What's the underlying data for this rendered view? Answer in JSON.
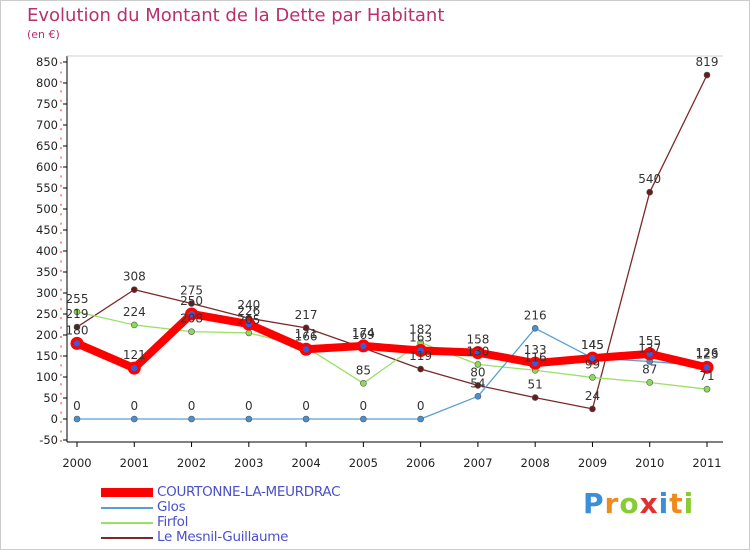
{
  "chart_data": {
    "type": "line",
    "title": "Evolution du Montant de la Dette par Habitant",
    "subtitle": "(en €)",
    "x": [
      "2000",
      "2001",
      "2002",
      "2003",
      "2004",
      "2005",
      "2006",
      "2007",
      "2008",
      "2009",
      "2010",
      "2011"
    ],
    "ylim": [
      -50,
      850
    ],
    "yticks": [
      -50,
      0,
      50,
      100,
      150,
      200,
      250,
      300,
      350,
      400,
      450,
      500,
      550,
      600,
      650,
      700,
      750,
      800,
      850
    ],
    "grid": false,
    "series": [
      {
        "name": "COURTONNE-LA-MEURDRAC",
        "color": "#ff0000",
        "marker": "#3b5bd8",
        "values": [
          180,
          121,
          250,
          226,
          166,
          174,
          163,
          158,
          133,
          145,
          155,
          123
        ],
        "labels": [
          "180",
          "121",
          "250",
          "226",
          "166",
          "174",
          "163",
          "158",
          "133",
          "145",
          "155",
          "123"
        ]
      },
      {
        "name": "Glos",
        "color": "#5a9fd4",
        "marker": "#4a90d0",
        "values": [
          0,
          0,
          0,
          0,
          0,
          0,
          0,
          54,
          216,
          145,
          137,
          126
        ],
        "labels": [
          "0",
          "0",
          "0",
          "0",
          "0",
          "0",
          "0",
          "54",
          "216",
          "145",
          "137",
          "126"
        ]
      },
      {
        "name": "Firfol",
        "color": "#99e066",
        "marker": "#88dd55",
        "values": [
          255,
          224,
          208,
          205,
          171,
          85,
          182,
          130,
          116,
          99,
          87,
          71
        ],
        "labels": [
          "255",
          "224",
          "208",
          "205",
          "171",
          "85",
          "182",
          "130",
          "116",
          "99",
          "87",
          "71"
        ]
      },
      {
        "name": "Le Mesnil-Guillaume",
        "color": "#7a2a2a",
        "marker": "#6a1a1a",
        "values": [
          219,
          308,
          275,
          240,
          217,
          169,
          119,
          80,
          51,
          24,
          540,
          819
        ],
        "labels": [
          "219",
          "308",
          "275",
          "240",
          "217",
          "169",
          "119",
          "80",
          "51",
          "24",
          "540",
          "819"
        ]
      }
    ]
  },
  "legend": {
    "items": [
      {
        "label": "COURTONNE-LA-MEURDRAC",
        "color": "#ff0000"
      },
      {
        "label": "Glos",
        "color": "#5a9fd4"
      },
      {
        "label": "Firfol",
        "color": "#99e066"
      },
      {
        "label": "Le Mesnil-Guillaume",
        "color": "#7a2a2a"
      }
    ]
  },
  "logo": {
    "text": "Proxiti",
    "letters": [
      "P",
      "r",
      "o",
      "x",
      "i",
      "t",
      "i"
    ],
    "colors": [
      "#3b8fd8",
      "#f08a1a",
      "#88cc33",
      "#e03030",
      "#3b8fd8",
      "#f08a1a",
      "#88cc33"
    ]
  }
}
